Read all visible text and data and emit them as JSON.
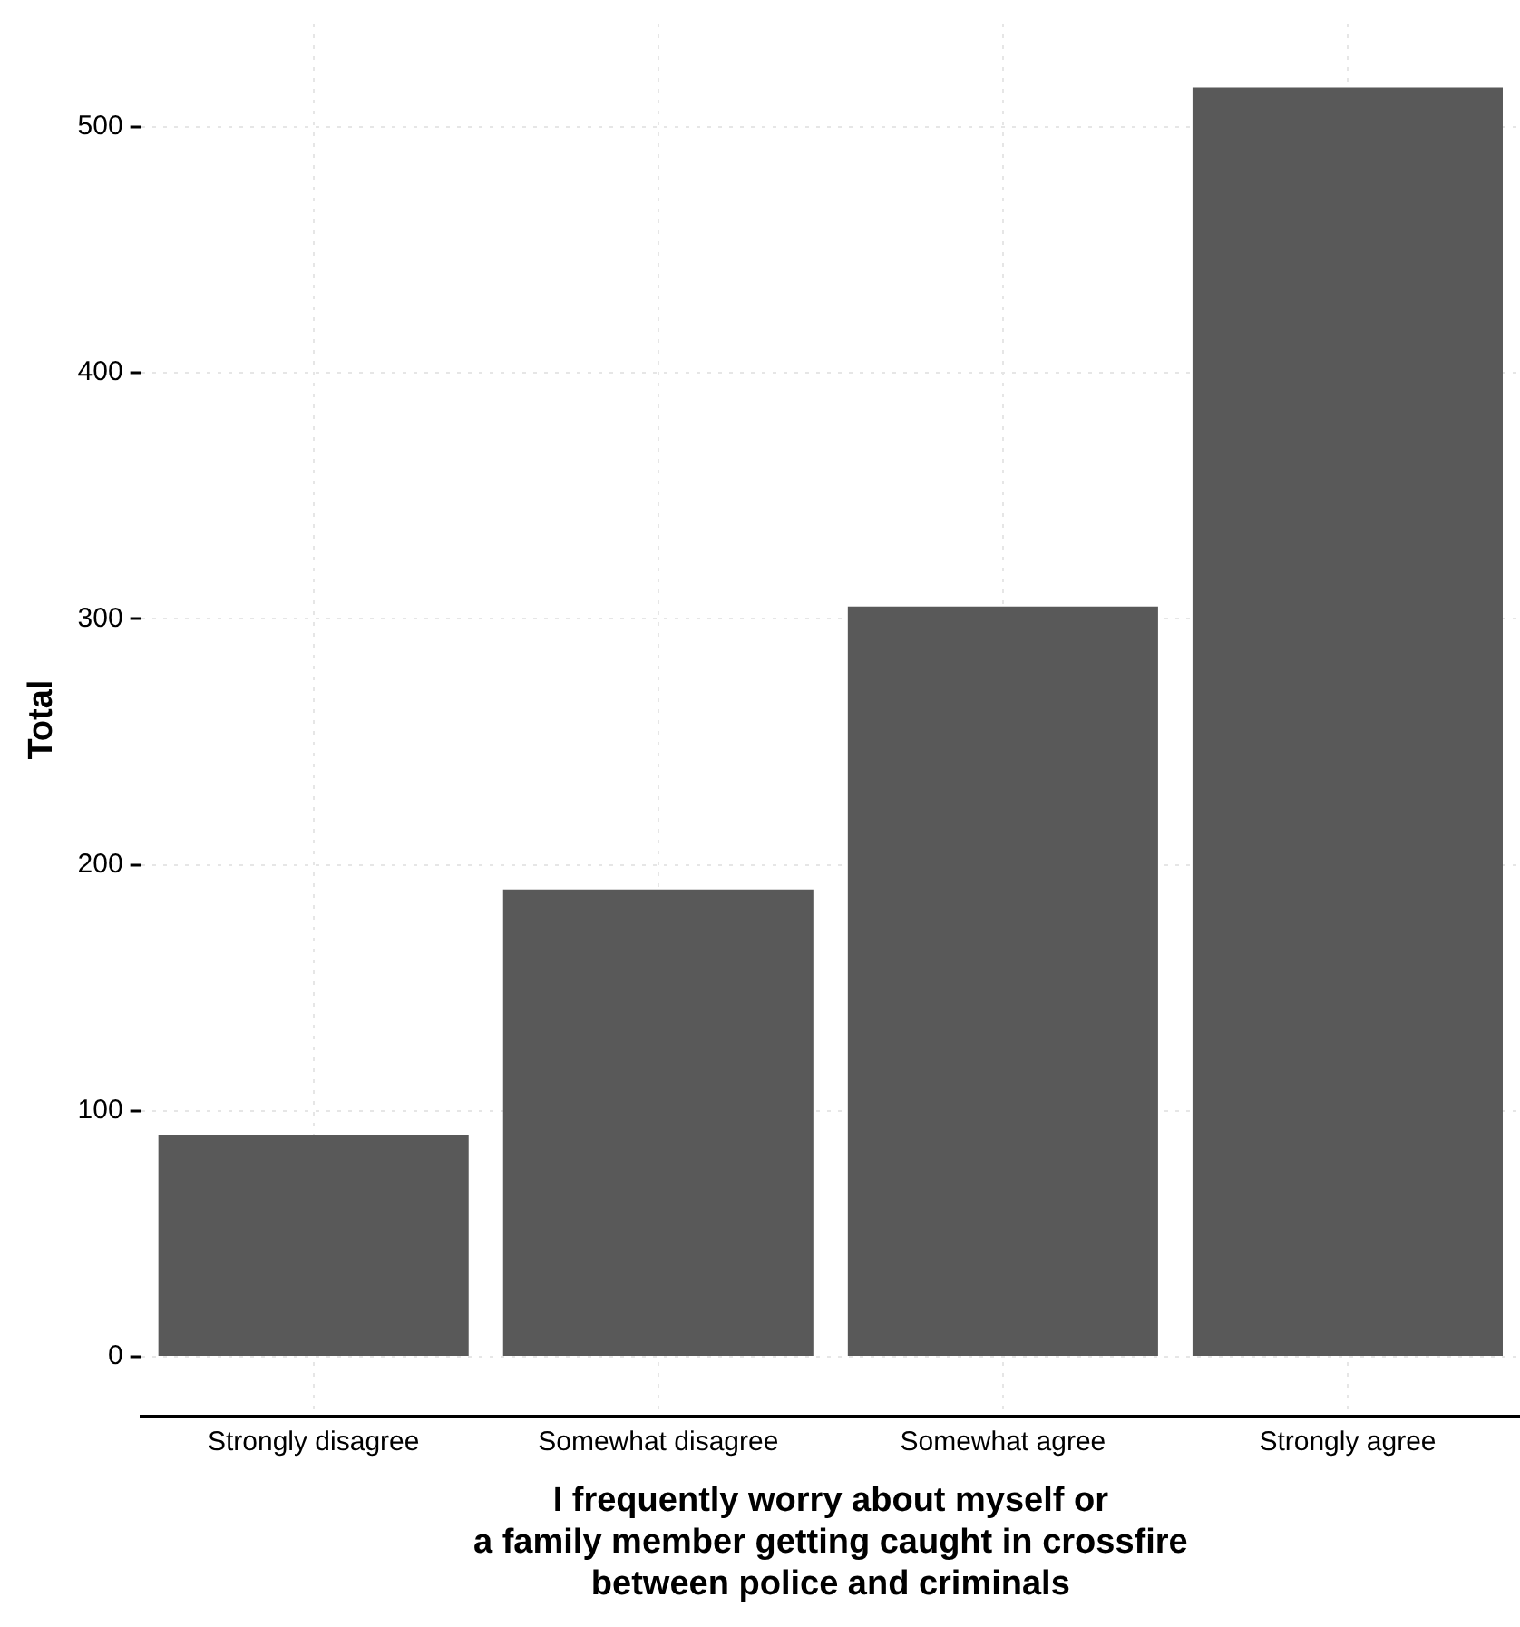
{
  "chart_data": {
    "type": "bar",
    "xlabel": "I frequently worry about myself or\na family member getting caught in crossfire\nbetween police and criminals",
    "ylabel": "Total",
    "categories": [
      "Strongly disagree",
      "Somewhat disagree",
      "Somewhat agree",
      "Strongly agree"
    ],
    "values": [
      90,
      190,
      305,
      516
    ],
    "color": "#595959",
    "ylim": [
      -24,
      542
    ],
    "yticks": [
      0,
      100,
      200,
      300,
      400,
      500
    ],
    "grid": true
  }
}
